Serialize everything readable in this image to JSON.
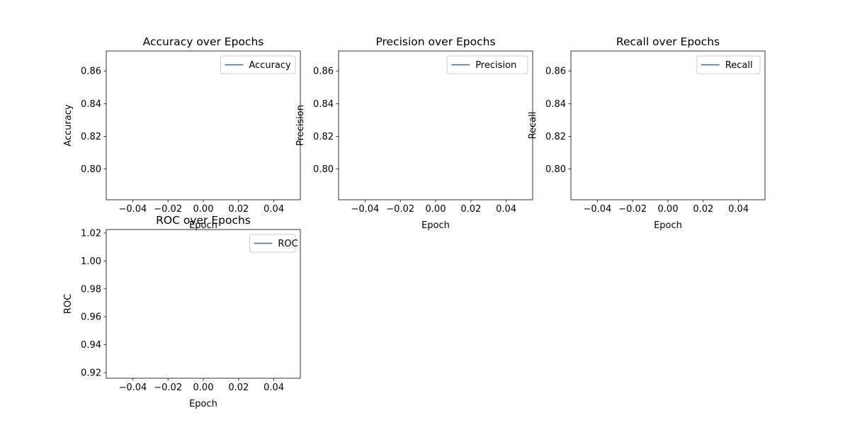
{
  "chart_data": [
    {
      "type": "line",
      "title": "Accuracy over Epochs",
      "xlabel": "Epoch",
      "ylabel": "Accuracy",
      "xlim": [
        -0.055,
        0.055
      ],
      "ylim": [
        0.7812,
        0.8722
      ],
      "xticks": [
        -0.04,
        -0.02,
        0.0,
        0.02,
        0.04
      ],
      "xtick_labels": [
        "−0.04",
        "−0.02",
        "0.00",
        "0.02",
        "0.04"
      ],
      "yticks": [
        0.8,
        0.82,
        0.84,
        0.86
      ],
      "ytick_labels": [
        "0.80",
        "0.82",
        "0.84",
        "0.86"
      ],
      "series": [
        {
          "name": "Accuracy",
          "color": "#1f77b4",
          "x": [],
          "y": []
        }
      ],
      "legend": "top-right",
      "grid": false
    },
    {
      "type": "line",
      "title": "Precision over Epochs",
      "xlabel": "Epoch",
      "ylabel": "Precision",
      "xlim": [
        -0.055,
        0.055
      ],
      "ylim": [
        0.7812,
        0.8722
      ],
      "xticks": [
        -0.04,
        -0.02,
        0.0,
        0.02,
        0.04
      ],
      "xtick_labels": [
        "−0.04",
        "−0.02",
        "0.00",
        "0.02",
        "0.04"
      ],
      "yticks": [
        0.8,
        0.82,
        0.84,
        0.86
      ],
      "ytick_labels": [
        "0.80",
        "0.82",
        "0.84",
        "0.86"
      ],
      "series": [
        {
          "name": "Precision",
          "color": "#1f77b4",
          "x": [],
          "y": []
        }
      ],
      "legend": "top-right",
      "grid": false
    },
    {
      "type": "line",
      "title": "Recall over Epochs",
      "xlabel": "Epoch",
      "ylabel": "Recall",
      "xlim": [
        -0.055,
        0.055
      ],
      "ylim": [
        0.7812,
        0.8722
      ],
      "xticks": [
        -0.04,
        -0.02,
        0.0,
        0.02,
        0.04
      ],
      "xtick_labels": [
        "−0.04",
        "−0.02",
        "0.00",
        "0.02",
        "0.04"
      ],
      "yticks": [
        0.8,
        0.82,
        0.84,
        0.86
      ],
      "ytick_labels": [
        "0.80",
        "0.82",
        "0.84",
        "0.86"
      ],
      "series": [
        {
          "name": "Recall",
          "color": "#1f77b4",
          "x": [],
          "y": []
        }
      ],
      "legend": "top-right",
      "grid": false
    },
    {
      "type": "line",
      "title": "ROC over Epochs",
      "xlabel": "Epoch",
      "ylabel": "ROC",
      "xlim": [
        -0.055,
        0.055
      ],
      "ylim": [
        0.916,
        1.0225
      ],
      "xticks": [
        -0.04,
        -0.02,
        0.0,
        0.02,
        0.04
      ],
      "xtick_labels": [
        "−0.04",
        "−0.02",
        "0.00",
        "0.02",
        "0.04"
      ],
      "yticks": [
        0.92,
        0.94,
        0.96,
        0.98,
        1.0,
        1.02
      ],
      "ytick_labels": [
        "0.92",
        "0.94",
        "0.96",
        "0.98",
        "1.00",
        "1.02"
      ],
      "series": [
        {
          "name": "ROC",
          "color": "#1f77b4",
          "x": [],
          "y": []
        }
      ],
      "legend": "top-right",
      "grid": false
    }
  ]
}
